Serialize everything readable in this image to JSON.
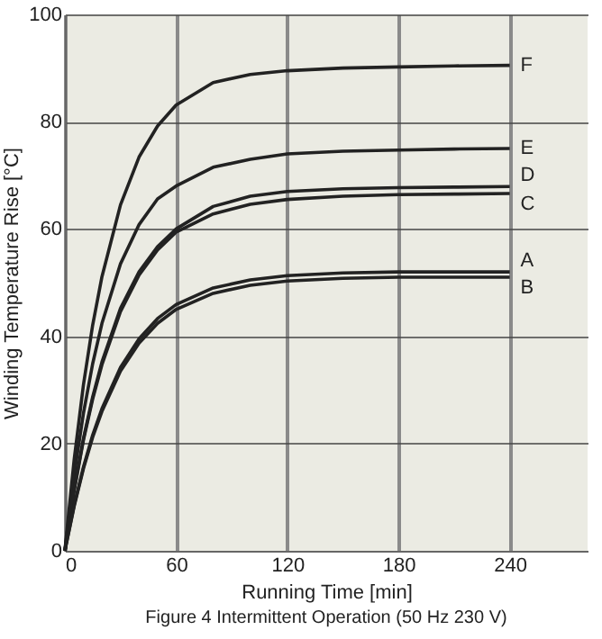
{
  "chart_data": {
    "type": "line",
    "title": "Figure 4   Intermittent Operation (50 Hz 230 V)",
    "xlabel": "Running Time [min]",
    "ylabel": "Winding Temperature Rise [°C]",
    "x": [
      0,
      5,
      10,
      15,
      20,
      30,
      40,
      50,
      60,
      80,
      100,
      120,
      150,
      180,
      210,
      240
    ],
    "series": [
      {
        "name": "F",
        "color": "#222222",
        "values": [
          0,
          17.0,
          30.9,
          42.1,
          51.1,
          64.5,
          73.4,
          79.2,
          83.1,
          87.3,
          88.8,
          89.5,
          90.0,
          90.2,
          90.4,
          90.5
        ]
      },
      {
        "name": "E",
        "color": "#222222",
        "values": [
          0,
          14.1,
          25.6,
          34.9,
          42.4,
          53.5,
          60.8,
          65.6,
          68.0,
          71.5,
          73.0,
          74.0,
          74.5,
          74.7,
          74.9,
          75.0
        ]
      },
      {
        "name": "D",
        "color": "#222222",
        "values": [
          0,
          11.4,
          20.9,
          28.7,
          35.2,
          45.2,
          52.0,
          56.7,
          60.0,
          64.2,
          66.1,
          67.0,
          67.5,
          67.7,
          67.8,
          67.9
        ]
      },
      {
        "name": "C",
        "color": "#222222",
        "values": [
          0,
          11.2,
          20.6,
          28.3,
          34.7,
          44.6,
          51.4,
          56.1,
          59.4,
          62.8,
          64.6,
          65.5,
          66.1,
          66.4,
          66.5,
          66.6
        ]
      },
      {
        "name": "A",
        "color": "#222222",
        "values": [
          0,
          8.5,
          15.6,
          21.6,
          26.5,
          34.2,
          39.5,
          43.3,
          45.9,
          49.0,
          50.5,
          51.3,
          51.8,
          52.0,
          52.0,
          52.0
        ]
      },
      {
        "name": "B",
        "color": "#222222",
        "values": [
          0,
          8.3,
          15.3,
          21.2,
          26.0,
          33.5,
          38.7,
          42.4,
          45.0,
          48.0,
          49.5,
          50.3,
          50.8,
          51.0,
          51.0,
          51.0
        ]
      }
    ],
    "xlim": [
      0,
      282
    ],
    "ylim": [
      0,
      100
    ],
    "xticks": [
      0,
      60,
      120,
      180,
      240
    ],
    "yticks": [
      0,
      20,
      40,
      60,
      80,
      100
    ],
    "grid": true,
    "line_style": "solid"
  }
}
